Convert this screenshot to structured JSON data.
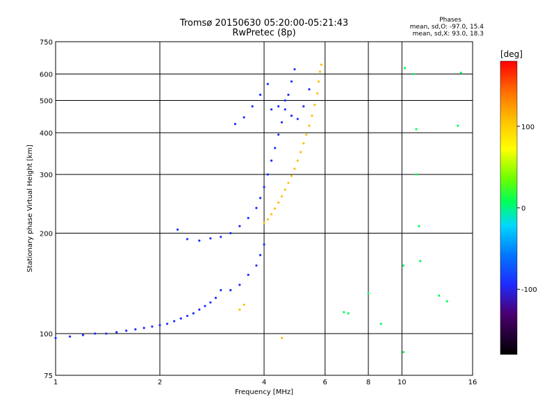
{
  "header": {
    "title": "Tromsø 20150630 05:20:00-05:21:43",
    "subtitle": "RwPretec (8p)"
  },
  "stats": {
    "heading": "Phases",
    "line_o": "mean, sd,O: -97.0, 15.4",
    "line_x": "mean, sd,X:  93.0, 18.3"
  },
  "colorbar": {
    "title": "[deg]",
    "ticks": [
      100,
      0,
      -100
    ],
    "range": [
      -180,
      180
    ]
  },
  "chart_data": {
    "type": "scatter",
    "title": "Tromsø 20150630 05:20:00-05:21:43",
    "subtitle": "RwPretec (8p)",
    "xlabel": "Frequency [MHz]",
    "ylabel": "Stationary phase Virtual Height [km]",
    "xscale": "log",
    "yscale": "log",
    "xlim": [
      1,
      16
    ],
    "ylim": [
      75,
      750
    ],
    "xticks": [
      1,
      2,
      4,
      6,
      8,
      10,
      16
    ],
    "yticks": [
      75,
      100,
      200,
      300,
      400,
      500,
      600,
      750
    ],
    "grid_x": [
      2,
      4,
      6,
      8,
      10
    ],
    "grid_y": [
      100,
      200,
      300,
      400,
      500,
      600
    ],
    "color_variable": "phase [deg]",
    "series": [
      {
        "trace": "O",
        "phase_deg": -100,
        "points": [
          [
            1.0,
            97
          ],
          [
            1.1,
            98
          ],
          [
            1.2,
            99
          ],
          [
            1.3,
            100
          ],
          [
            1.4,
            100
          ],
          [
            1.5,
            101
          ],
          [
            1.6,
            102
          ],
          [
            1.7,
            103
          ],
          [
            1.8,
            104
          ],
          [
            1.9,
            105
          ],
          [
            2.0,
            106
          ],
          [
            2.1,
            107
          ],
          [
            2.2,
            109
          ],
          [
            2.3,
            111
          ],
          [
            2.4,
            113
          ],
          [
            2.5,
            115
          ],
          [
            2.6,
            118
          ],
          [
            2.7,
            121
          ],
          [
            2.8,
            124
          ],
          [
            2.9,
            128
          ],
          [
            3.0,
            135
          ],
          [
            2.25,
            205
          ],
          [
            2.4,
            192
          ],
          [
            2.6,
            190
          ],
          [
            2.8,
            193
          ],
          [
            3.0,
            195
          ],
          [
            3.2,
            200
          ],
          [
            3.4,
            210
          ],
          [
            3.6,
            222
          ],
          [
            3.8,
            238
          ],
          [
            3.9,
            255
          ],
          [
            4.0,
            275
          ],
          [
            4.1,
            300
          ],
          [
            4.2,
            330
          ],
          [
            4.3,
            360
          ],
          [
            4.4,
            395
          ],
          [
            4.5,
            430
          ],
          [
            4.6,
            470
          ],
          [
            4.7,
            520
          ],
          [
            4.8,
            570
          ],
          [
            4.9,
            620
          ],
          [
            3.8,
            160
          ],
          [
            3.9,
            172
          ],
          [
            4.0,
            185
          ],
          [
            3.6,
            150
          ],
          [
            3.4,
            140
          ],
          [
            3.2,
            135
          ],
          [
            4.2,
            470
          ],
          [
            4.4,
            480
          ],
          [
            4.6,
            500
          ],
          [
            4.8,
            450
          ],
          [
            5.0,
            440
          ],
          [
            5.2,
            480
          ],
          [
            5.4,
            540
          ],
          [
            3.3,
            425
          ],
          [
            3.5,
            445
          ],
          [
            3.7,
            480
          ],
          [
            3.9,
            520
          ],
          [
            4.1,
            560
          ]
        ]
      },
      {
        "trace": "X",
        "phase_deg": 95,
        "points": [
          [
            4.0,
            215
          ],
          [
            4.1,
            220
          ],
          [
            4.2,
            228
          ],
          [
            4.3,
            237
          ],
          [
            4.4,
            247
          ],
          [
            4.5,
            258
          ],
          [
            4.6,
            270
          ],
          [
            4.7,
            283
          ],
          [
            4.8,
            297
          ],
          [
            4.9,
            312
          ],
          [
            5.0,
            330
          ],
          [
            5.1,
            350
          ],
          [
            5.2,
            372
          ],
          [
            5.3,
            395
          ],
          [
            5.4,
            420
          ],
          [
            5.5,
            450
          ],
          [
            5.6,
            485
          ],
          [
            5.7,
            525
          ],
          [
            5.75,
            570
          ],
          [
            5.8,
            610
          ],
          [
            5.85,
            640
          ],
          [
            3.4,
            118
          ],
          [
            3.5,
            122
          ],
          [
            4.5,
            97
          ]
        ]
      },
      {
        "trace": "scattered",
        "phase_deg": 0,
        "points": [
          [
            10.2,
            625
          ],
          [
            10.8,
            600
          ],
          [
            11.0,
            410
          ],
          [
            11.0,
            300
          ],
          [
            11.2,
            210
          ],
          [
            11.3,
            165
          ],
          [
            12.8,
            130
          ],
          [
            13.5,
            125
          ],
          [
            14.5,
            420
          ],
          [
            14.8,
            605
          ],
          [
            10.1,
            160
          ],
          [
            10.1,
            88
          ],
          [
            8.0,
            132
          ],
          [
            8.7,
            107
          ],
          [
            7.0,
            115
          ],
          [
            6.8,
            116
          ]
        ]
      }
    ]
  }
}
